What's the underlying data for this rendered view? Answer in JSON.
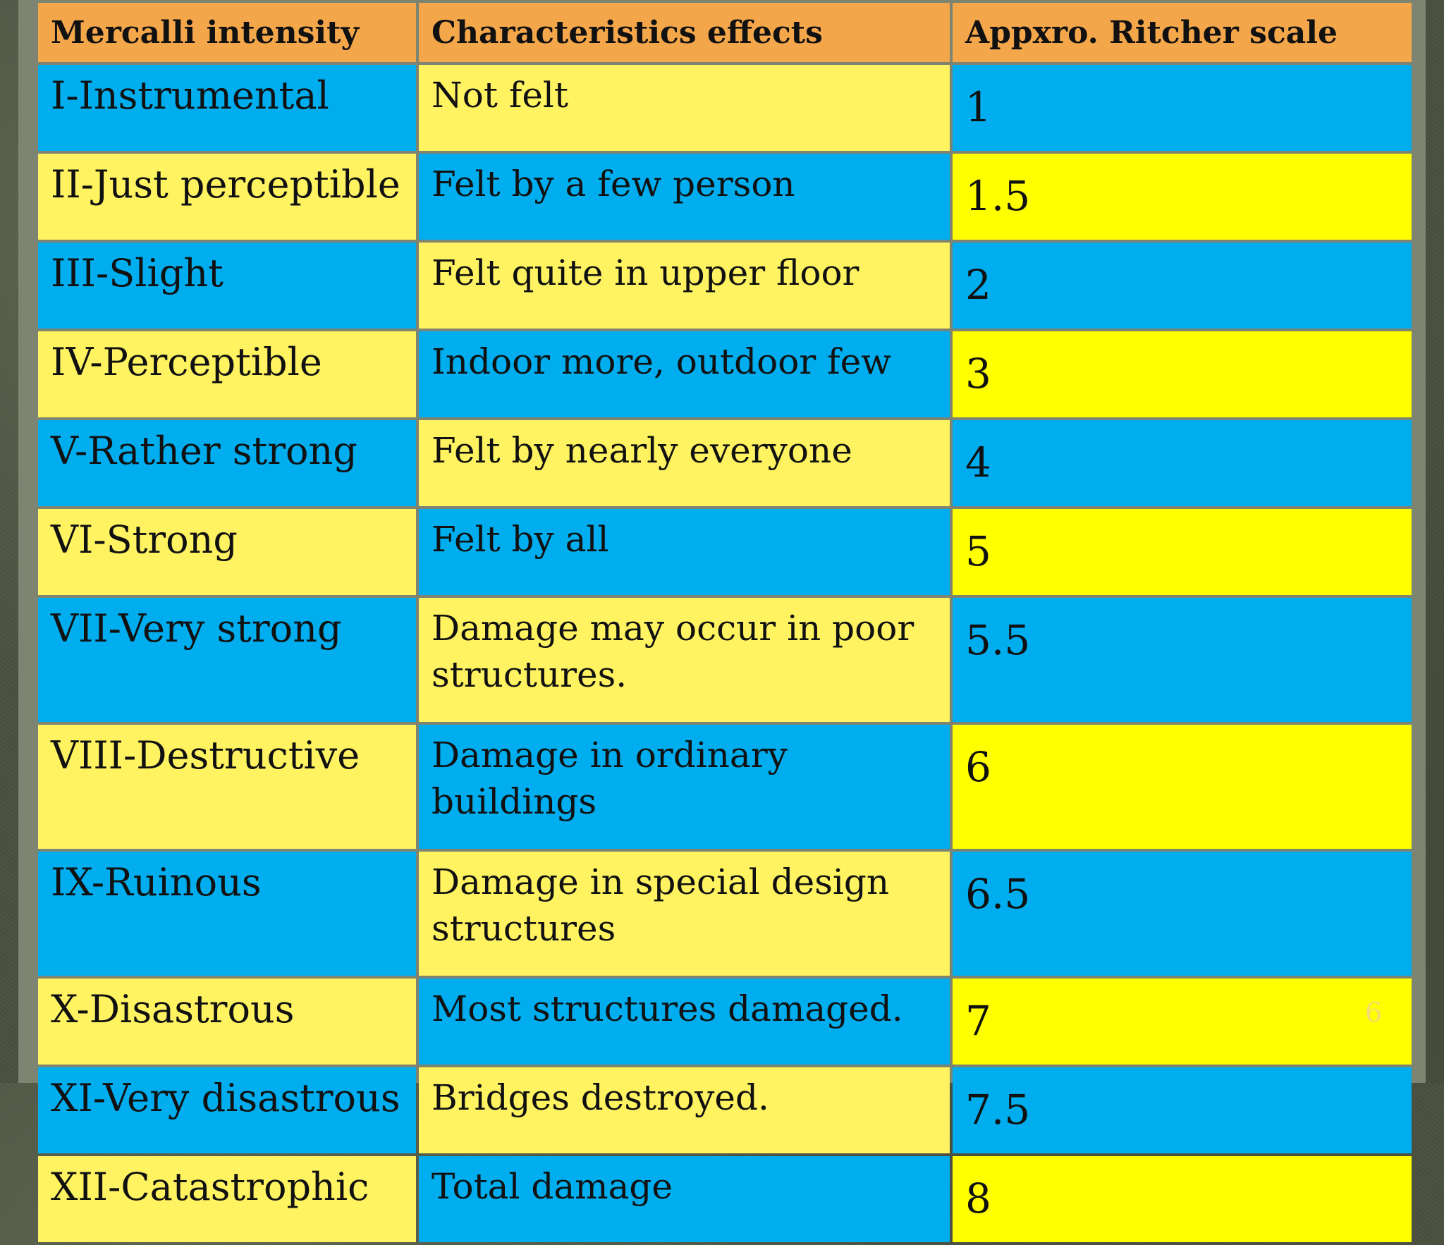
{
  "table": {
    "headers": [
      "Mercalli intensity",
      "Characteristics effects",
      "Appxro. Ritcher scale"
    ],
    "rows": [
      {
        "intensity": "I-Instrumental",
        "effect": "Not felt",
        "richter": "1"
      },
      {
        "intensity": "II-Just perceptible",
        "effect": "Felt by a few person",
        "richter": "1.5"
      },
      {
        "intensity": "III-Slight",
        "effect": "Felt quite in upper floor",
        "richter": "2"
      },
      {
        "intensity": "IV-Perceptible",
        "effect": "Indoor more, outdoor few",
        "richter": "3"
      },
      {
        "intensity": "V-Rather strong",
        "effect": "Felt by nearly everyone",
        "richter": "4"
      },
      {
        "intensity": "VI-Strong",
        "effect": "Felt by all",
        "richter": "5"
      },
      {
        "intensity": "VII-Very strong",
        "effect": "Damage may occur in poor structures.",
        "richter": "5.5"
      },
      {
        "intensity": "VIII-Destructive",
        "effect": "Damage in ordinary buildings",
        "richter": "6"
      },
      {
        "intensity": "IX-Ruinous",
        "effect": "Damage in special design structures",
        "richter": "6.5"
      },
      {
        "intensity": "X-Disastrous",
        "effect": "Most structures damaged.",
        "richter": "7"
      },
      {
        "intensity": "XI-Very disastrous",
        "effect": "Bridges destroyed.",
        "richter": "7.5"
      },
      {
        "intensity": "XII-Catastrophic",
        "effect": "Total damage",
        "richter": "8"
      }
    ]
  },
  "colors": {
    "header": "#f4a64b",
    "blue": "#00adee",
    "yellow": "#fff361",
    "bright_yellow": "#ffff00"
  },
  "slide": {
    "number": "6"
  }
}
